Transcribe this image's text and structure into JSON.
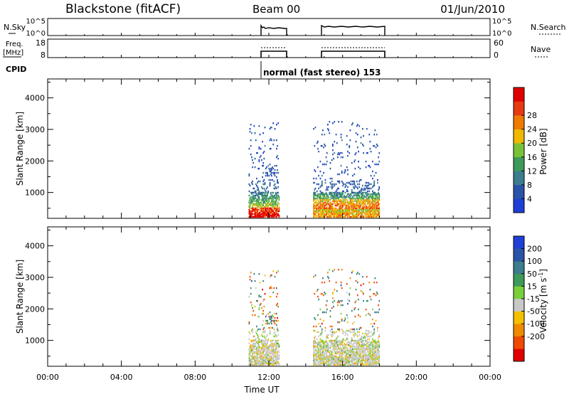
{
  "header": {
    "station": "Blackstone (fitACF)",
    "beam": "Beam 00",
    "date": "01/Jun/2010"
  },
  "strips": {
    "nsky": {
      "label": "N.Sky",
      "ticks": [
        "10^5",
        "10^0"
      ]
    },
    "nsearch": {
      "label": "N.Search",
      "ticks": [
        "10^5",
        "10^0"
      ]
    },
    "freq": {
      "label_line1": "Freq.",
      "label_line2": "[MHz]",
      "ticks": [
        "18",
        "8"
      ]
    },
    "nave": {
      "label": "Nave",
      "ticks": [
        "60",
        "0"
      ]
    },
    "cpid": {
      "label": "CPID",
      "text": "normal (fast stereo) 153"
    }
  },
  "colors": {
    "power": [
      "#1f3fd6",
      "#2a54a8",
      "#3c7d8e",
      "#3d9a5a",
      "#78c23a",
      "#f0b800",
      "#f07a00",
      "#e83a10",
      "#e00000"
    ],
    "velocity": [
      "#e00000",
      "#f04a00",
      "#f08a00",
      "#f5c000",
      "#c8c8c8",
      "#7ad03a",
      "#3d9a5a",
      "#3c7d8e",
      "#2a54a8",
      "#1f3fd6"
    ]
  },
  "chart_data": [
    {
      "type": "heatmap",
      "title": "Power",
      "ylabel": "Slant Range [km]",
      "xlabel": "Time UT",
      "x_ticks": [
        "00:00",
        "04:00",
        "08:00",
        "12:00",
        "16:00",
        "20:00",
        "00:00"
      ],
      "x_range_hours": [
        0,
        24
      ],
      "ylim": [
        180,
        4600
      ],
      "y_ticks": [
        1000,
        2000,
        3000,
        4000
      ],
      "colorbar": {
        "label": "Power [dB]",
        "ticks": [
          "4",
          "8",
          "12",
          "16",
          "20",
          "24",
          "28"
        ],
        "range": [
          0,
          30
        ]
      },
      "data_intervals_hours": [
        [
          10.9,
          12.55
        ],
        [
          14.4,
          18.0
        ]
      ]
    },
    {
      "type": "heatmap",
      "title": "Velocity",
      "ylabel": "Slant Range [km]",
      "xlabel": "Time UT",
      "x_ticks": [
        "00:00",
        "04:00",
        "08:00",
        "12:00",
        "16:00",
        "20:00",
        "00:00"
      ],
      "x_range_hours": [
        0,
        24
      ],
      "ylim": [
        180,
        4600
      ],
      "y_ticks": [
        1000,
        2000,
        3000,
        4000
      ],
      "colorbar": {
        "label_main": "Velocity [m s",
        "label_sup": "-1",
        "label_end": "]",
        "ticks": [
          "200",
          "100",
          "50",
          "15",
          "-15",
          "-50",
          "-100",
          "-200"
        ],
        "range": [
          -250,
          250
        ]
      },
      "data_intervals_hours": [
        [
          10.9,
          12.55
        ],
        [
          14.4,
          18.0
        ]
      ]
    }
  ]
}
